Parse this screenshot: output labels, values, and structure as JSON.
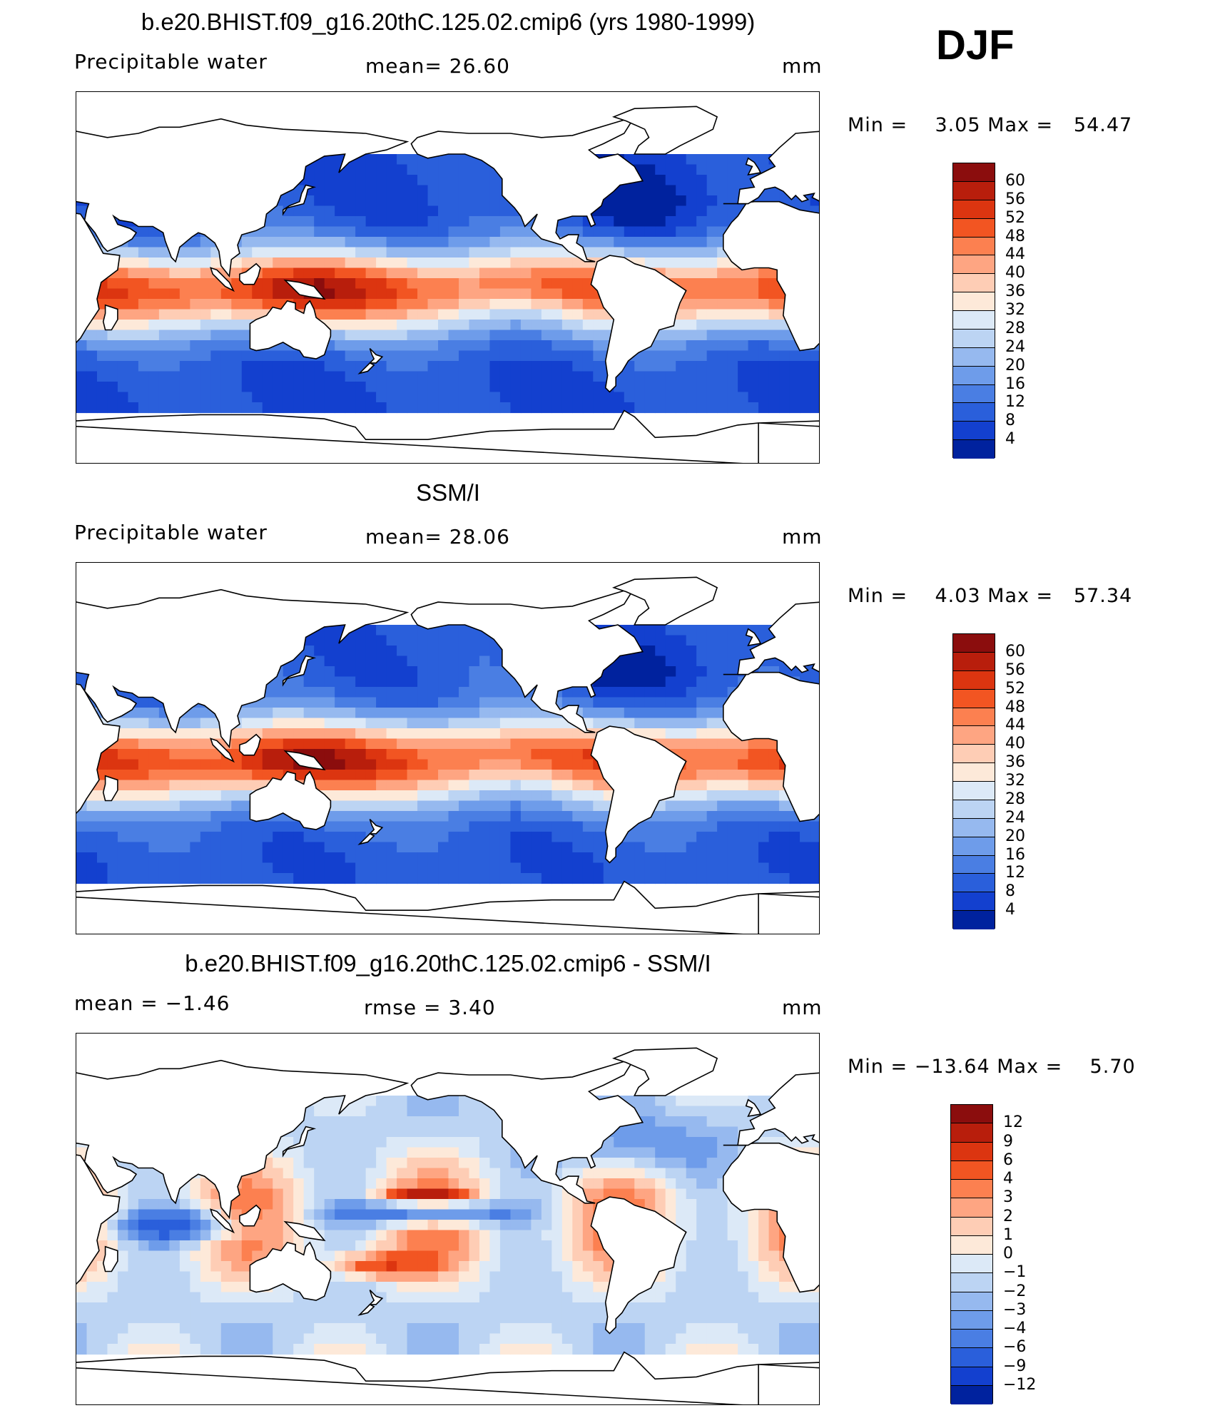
{
  "season": "DJF",
  "panels": [
    {
      "title": "b.e20.BHIST.f09_g16.20thC.125.02.cmip6 (yrs 1980-1999)",
      "left_label": "Precipitable water",
      "center_label": "mean=  26.60",
      "units": "mm",
      "minmax": "Min =    3.05 Max =   54.47",
      "colorbar_levels": [
        "60",
        "56",
        "52",
        "48",
        "44",
        "40",
        "36",
        "32",
        "28",
        "24",
        "20",
        "16",
        "12",
        "8",
        "4"
      ],
      "colormap": "abs",
      "mean": 26.6,
      "min": 3.05,
      "max": 54.47
    },
    {
      "title": "SSM/I",
      "left_label": "Precipitable water",
      "center_label": "mean=  28.06",
      "units": "mm",
      "minmax": "Min =    4.03 Max =   57.34",
      "colorbar_levels": [
        "60",
        "56",
        "52",
        "48",
        "44",
        "40",
        "36",
        "32",
        "28",
        "24",
        "20",
        "16",
        "12",
        "8",
        "4"
      ],
      "colormap": "abs",
      "mean": 28.06,
      "min": 4.03,
      "max": 57.34
    },
    {
      "title": "b.e20.BHIST.f09_g16.20thC.125.02.cmip6 - SSM/I",
      "left_label": "mean =   −1.46",
      "center_label": "rmse =    3.40",
      "units": "mm",
      "minmax": "Min = −13.64 Max =    5.70",
      "colorbar_levels": [
        "12",
        "9",
        "6",
        "4",
        "3",
        "2",
        "1",
        "0",
        "−1",
        "−2",
        "−3",
        "−4",
        "−6",
        "−9",
        "−12"
      ],
      "colormap": "diff",
      "mean": -1.46,
      "rmse": 3.4,
      "min": -13.64,
      "max": 5.7
    }
  ],
  "colors": {
    "abs": [
      "#8b0d0d",
      "#b81e0c",
      "#dc3510",
      "#f25522",
      "#fc8050",
      "#fea582",
      "#fecdb5",
      "#fde9d9",
      "#dce9f7",
      "#bcd4f3",
      "#96b9ef",
      "#6e9cea",
      "#4a7ee3",
      "#2a5fdb",
      "#1340cf",
      "#00229e"
    ],
    "diff": [
      "#8b0d0d",
      "#b81e0c",
      "#dc3510",
      "#f25522",
      "#fc8050",
      "#fea582",
      "#fecdb5",
      "#fde9d9",
      "#dce9f7",
      "#bcd4f3",
      "#96b9ef",
      "#6e9cea",
      "#4a7ee3",
      "#2a5fdb",
      "#1340cf",
      "#00229e"
    ]
  }
}
